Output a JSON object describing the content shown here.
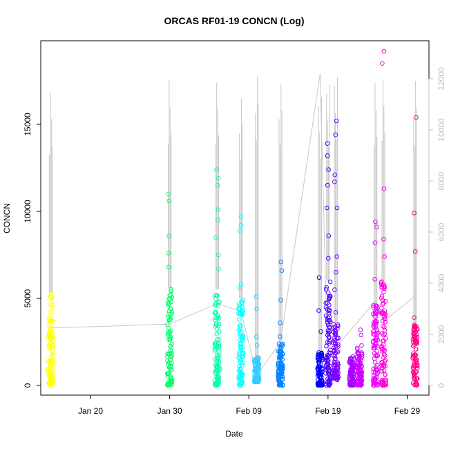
{
  "chart_data": {
    "type": "scatter",
    "title": "ORCAS RF01-19 CONCN (Log)",
    "xlabel": "Date",
    "ylabel": "CONCN",
    "ylim_left": [
      0,
      20000
    ],
    "ylim_right": [
      0,
      13000
    ],
    "grid": false,
    "x_axis_type": "date",
    "x_ticks": [
      {
        "date": "2016-01-20",
        "label": "Jan 20"
      },
      {
        "date": "2016-01-30",
        "label": "Jan 30"
      },
      {
        "date": "2016-02-09",
        "label": "Feb 09"
      },
      {
        "date": "2016-02-19",
        "label": "Feb 19"
      },
      {
        "date": "2016-02-29",
        "label": "Feb 29"
      }
    ],
    "y_ticks_left": [
      0,
      5000,
      10000,
      15000
    ],
    "y_ticks_right": [
      0,
      2000,
      4000,
      6000,
      8000,
      10000,
      12000
    ],
    "flights": [
      {
        "date": "2016-01-15",
        "color": "#ffff00",
        "lo": 0,
        "hi": 5300,
        "cap_left": 18400,
        "cap_right_end": 2250,
        "points": [
          {
            "x": "2016-01-15",
            "y": 5100
          },
          {
            "x": "2016-01-15",
            "y": 4900
          },
          {
            "x": "2016-01-15",
            "y": 4200
          }
        ]
      },
      {
        "date": "2016-01-30",
        "color": "#00ff66",
        "lo": 0,
        "hi": 5600,
        "cap_left": 18600,
        "cap_right_end": 2400,
        "points": [
          {
            "x": "2016-01-30",
            "y": 11000
          },
          {
            "x": "2016-01-30",
            "y": 10600
          },
          {
            "x": "2016-01-30",
            "y": 8600
          },
          {
            "x": "2016-01-30",
            "y": 7600
          },
          {
            "x": "2016-01-30",
            "y": 6800
          }
        ]
      },
      {
        "date": "2016-02-05",
        "color": "#00ffaa",
        "lo": 0,
        "hi": 5500,
        "cap_left": 17900,
        "cap_right_end": 3200,
        "points": [
          {
            "x": "2016-02-05",
            "y": 12400
          },
          {
            "x": "2016-02-05",
            "y": 11900
          },
          {
            "x": "2016-02-05",
            "y": 11500
          },
          {
            "x": "2016-02-05",
            "y": 10100
          },
          {
            "x": "2016-02-05",
            "y": 9500
          },
          {
            "x": "2016-02-05",
            "y": 8500
          },
          {
            "x": "2016-02-05",
            "y": 7500
          },
          {
            "x": "2016-02-05",
            "y": 6700
          }
        ]
      },
      {
        "date": "2016-02-08",
        "color": "#00ffff",
        "lo": 0,
        "hi": 5000,
        "cap_left": 18000,
        "cap_right_end": 2900,
        "points": [
          {
            "x": "2016-02-08",
            "y": 9700
          },
          {
            "x": "2016-02-08",
            "y": 9200
          },
          {
            "x": "2016-02-08",
            "y": 8900
          },
          {
            "x": "2016-02-08",
            "y": 5800
          },
          {
            "x": "2016-02-08",
            "y": 5600
          }
        ]
      },
      {
        "date": "2016-02-10",
        "color": "#33ccff",
        "lo": 200,
        "hi": 1700,
        "cap_left": 18800,
        "cap_right_end": 400,
        "points": [
          {
            "x": "2016-02-10",
            "y": 5100
          },
          {
            "x": "2016-02-10",
            "y": 4400
          },
          {
            "x": "2016-02-10",
            "y": 2800
          },
          {
            "x": "2016-02-10",
            "y": 2300
          }
        ]
      },
      {
        "date": "2016-02-13",
        "color": "#0080ff",
        "lo": 0,
        "hi": 2500,
        "cap_left": 17800,
        "cap_right_end": 1700,
        "points": [
          {
            "x": "2016-02-13",
            "y": 7100
          },
          {
            "x": "2016-02-13",
            "y": 6600
          },
          {
            "x": "2016-02-13",
            "y": 4900
          },
          {
            "x": "2016-02-13",
            "y": 3600
          },
          {
            "x": "2016-02-13",
            "y": 2800
          }
        ]
      },
      {
        "date": "2016-02-18",
        "color": "#0000ff",
        "lo": 0,
        "hi": 2000,
        "cap_left": 18100,
        "cap_right_end": 12200,
        "points": [
          {
            "x": "2016-02-18",
            "y": 6200
          },
          {
            "x": "2016-02-18",
            "y": 4300
          },
          {
            "x": "2016-02-18",
            "y": 3100
          }
        ]
      },
      {
        "date": "2016-02-19",
        "color": "#4b00ff",
        "lo": 0,
        "hi": 6000,
        "cap_left": 18300,
        "cap_right_end": 200,
        "points": [
          {
            "x": "2016-02-19",
            "y": 13900
          },
          {
            "x": "2016-02-19",
            "y": 13200
          },
          {
            "x": "2016-02-19",
            "y": 12400
          },
          {
            "x": "2016-02-19",
            "y": 11500
          },
          {
            "x": "2016-02-19",
            "y": 10200
          },
          {
            "x": "2016-02-19",
            "y": 8600
          },
          {
            "x": "2016-02-19",
            "y": 7300
          }
        ]
      },
      {
        "date": "2016-02-20",
        "color": "#7a00ff",
        "lo": 300,
        "hi": 3600,
        "cap_left": 18200,
        "cap_right_end": 1500,
        "points": [
          {
            "x": "2016-02-20",
            "y": 15200
          },
          {
            "x": "2016-02-20",
            "y": 14400
          },
          {
            "x": "2016-02-20",
            "y": 12100
          },
          {
            "x": "2016-02-20",
            "y": 11700
          },
          {
            "x": "2016-02-20",
            "y": 10200
          },
          {
            "x": "2016-02-20",
            "y": 7400
          },
          {
            "x": "2016-02-20",
            "y": 6500
          },
          {
            "x": "2016-02-20",
            "y": 5500
          },
          {
            "x": "2016-02-20",
            "y": 4200
          }
        ]
      },
      {
        "date": "2016-02-22",
        "color": "#aa00ff",
        "lo": 0,
        "hi": 1700,
        "cap_left": 0,
        "cap_right_end": 0,
        "points": []
      },
      {
        "date": "2016-02-23",
        "color": "#cc00ff",
        "lo": 0,
        "hi": 2300,
        "cap_left": 0,
        "cap_right_end": 0,
        "points": [
          {
            "x": "2016-02-23",
            "y": 3200
          },
          {
            "x": "2016-02-23",
            "y": 2900
          }
        ]
      },
      {
        "date": "2016-02-25",
        "color": "#ee00ff",
        "lo": 0,
        "hi": 4600,
        "cap_left": 18400,
        "cap_right_end": 3300,
        "points": [
          {
            "x": "2016-02-25",
            "y": 9400
          },
          {
            "x": "2016-02-25",
            "y": 9100
          },
          {
            "x": "2016-02-25",
            "y": 8200
          },
          {
            "x": "2016-02-25",
            "y": 6100
          }
        ]
      },
      {
        "date": "2016-02-26",
        "color": "#ff00dd",
        "lo": 0,
        "hi": 6000,
        "cap_left": 18100,
        "cap_right_end": 2500,
        "points": [
          {
            "x": "2016-02-26",
            "y": 19200
          },
          {
            "x": "2016-02-26",
            "y": 18500
          },
          {
            "x": "2016-02-26",
            "y": 11300
          },
          {
            "x": "2016-02-26",
            "y": 8400
          },
          {
            "x": "2016-02-26",
            "y": 7400
          }
        ]
      },
      {
        "date": "2016-03-01",
        "color": "#ff0088",
        "lo": 0,
        "hi": 3500,
        "cap_left": 19100,
        "cap_right_end": 3500,
        "points": [
          {
            "x": "2016-03-01",
            "y": 15400
          },
          {
            "x": "2016-03-01",
            "y": 9900
          },
          {
            "x": "2016-03-01",
            "y": 7700
          },
          {
            "x": "2016-03-01",
            "y": 3900
          }
        ]
      }
    ]
  }
}
